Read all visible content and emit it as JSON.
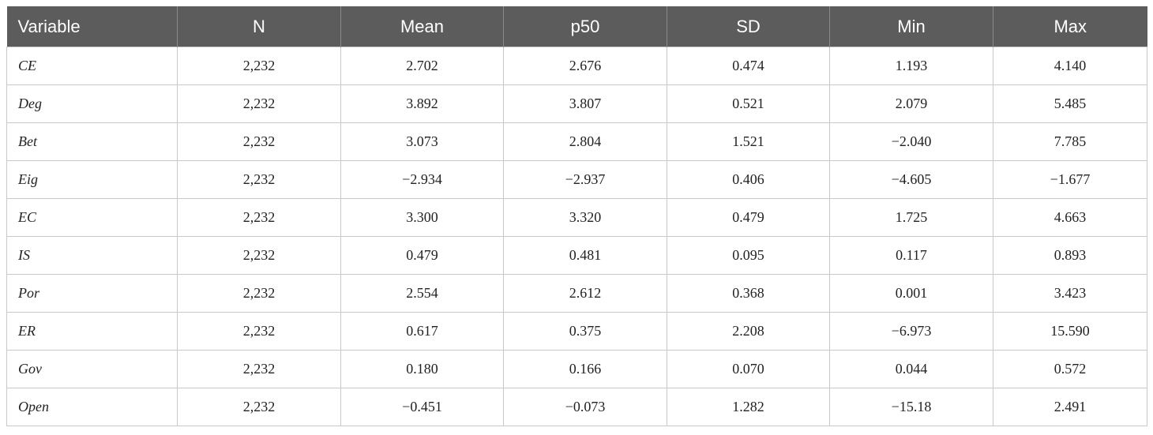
{
  "table": {
    "headers": [
      "Variable",
      "N",
      "Mean",
      "p50",
      "SD",
      "Min",
      "Max"
    ],
    "rows": [
      [
        "CE",
        "2,232",
        "2.702",
        "2.676",
        "0.474",
        "1.193",
        "4.140"
      ],
      [
        "Deg",
        "2,232",
        "3.892",
        "3.807",
        "0.521",
        "2.079",
        "5.485"
      ],
      [
        "Bet",
        "2,232",
        "3.073",
        "2.804",
        "1.521",
        "−2.040",
        "7.785"
      ],
      [
        "Eig",
        "2,232",
        "−2.934",
        "−2.937",
        "0.406",
        "−4.605",
        "−1.677"
      ],
      [
        "EC",
        "2,232",
        "3.300",
        "3.320",
        "0.479",
        "1.725",
        "4.663"
      ],
      [
        "IS",
        "2,232",
        "0.479",
        "0.481",
        "0.095",
        "0.117",
        "0.893"
      ],
      [
        "Por",
        "2,232",
        "2.554",
        "2.612",
        "0.368",
        "0.001",
        "3.423"
      ],
      [
        "ER",
        "2,232",
        "0.617",
        "0.375",
        "2.208",
        "−6.973",
        "15.590"
      ],
      [
        "Gov",
        "2,232",
        "0.180",
        "0.166",
        "0.070",
        "0.044",
        "0.572"
      ],
      [
        "Open",
        "2,232",
        "−0.451",
        "−0.073",
        "1.282",
        "−15.18",
        "2.491"
      ]
    ]
  }
}
